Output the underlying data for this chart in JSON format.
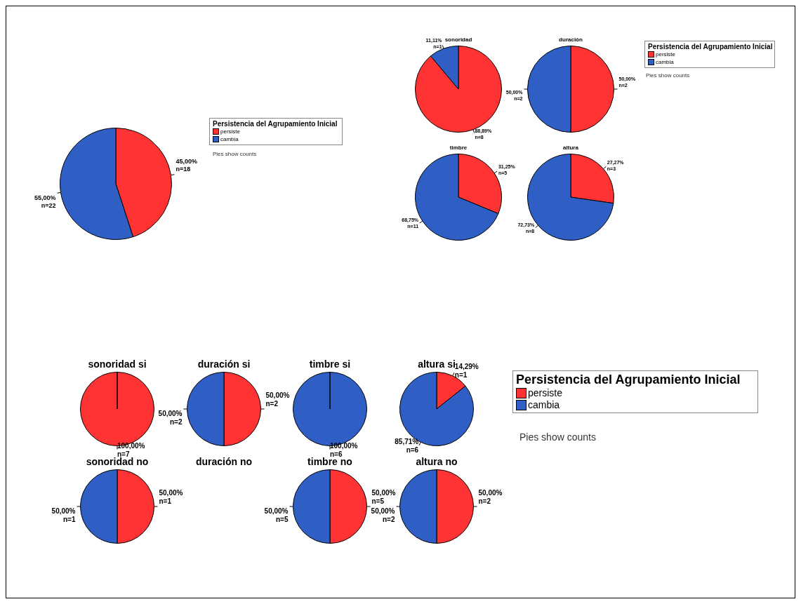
{
  "chart_data": [
    {
      "type": "pie",
      "categories": [
        "persiste",
        "cambia"
      ],
      "values": [
        18,
        22
      ],
      "colors": [
        "#ff3333",
        "#2f5fc4"
      ],
      "value_labels": [
        "45,00%\nn=18",
        "55,00%\nn=22"
      ],
      "legend": "right",
      "legend_title": "Persistencia del Agrupamiento Inicial",
      "annotations": [
        "Pies show counts"
      ]
    },
    {
      "type": "pie",
      "title": "sonoridad",
      "values": [
        8,
        1
      ],
      "colors": [
        "#ff3333",
        "#2f5fc4"
      ],
      "value_labels": [
        "88,89%\nn=8",
        "11,11%\nn=1"
      ]
    },
    {
      "type": "pie",
      "title": "duración",
      "categories": [
        "persiste",
        "cambia"
      ],
      "values": [
        2,
        2
      ],
      "colors": [
        "#ff3333",
        "#2f5fc4"
      ],
      "value_labels": [
        "50,00%\nn=2",
        "50,00%\nn=2"
      ],
      "legend": "right",
      "legend_title": "Persistencia del Agrupamiento Inicial",
      "annotations": [
        "Pies show counts"
      ]
    },
    {
      "type": "pie",
      "title": "timbre",
      "values": [
        5,
        11
      ],
      "colors": [
        "#ff3333",
        "#2f5fc4"
      ],
      "value_labels": [
        "31,25%\nn=5",
        "68,75%\nn=11"
      ]
    },
    {
      "type": "pie",
      "title": "altura",
      "values": [
        3,
        8
      ],
      "colors": [
        "#ff3333",
        "#2f5fc4"
      ],
      "value_labels": [
        "27,27%\nn=3",
        "72,73%\nn=8"
      ]
    },
    {
      "type": "pie",
      "title": "sonoridad si",
      "values": [
        7,
        0
      ],
      "colors": [
        "#ff3333",
        "#2f5fc4"
      ],
      "value_labels": [
        "100,00%\nn=7",
        null
      ]
    },
    {
      "type": "pie",
      "title": "duración si",
      "values": [
        2,
        2
      ],
      "colors": [
        "#ff3333",
        "#2f5fc4"
      ],
      "value_labels": [
        "50,00%\nn=2",
        "50,00%\nn=2"
      ]
    },
    {
      "type": "pie",
      "title": "timbre si",
      "values": [
        0,
        6
      ],
      "colors": [
        "#ff3333",
        "#2f5fc4"
      ],
      "value_labels": [
        null,
        "100,00%\nn=6"
      ]
    },
    {
      "type": "pie",
      "title": "altura si",
      "categories": [
        "persiste",
        "cambia"
      ],
      "values": [
        1,
        6
      ],
      "colors": [
        "#ff3333",
        "#2f5fc4"
      ],
      "value_labels": [
        "14,29%\nn=1",
        "85,71%\nn=6"
      ],
      "legend": "right",
      "legend_title": "Persistencia del Agrupamiento Inicial",
      "annotations": [
        "Pies show counts"
      ]
    },
    {
      "type": "pie",
      "title": "sonoridad no",
      "values": [
        1,
        1
      ],
      "colors": [
        "#ff3333",
        "#2f5fc4"
      ],
      "value_labels": [
        "50,00%\nn=1",
        "50,00%\nn=1"
      ]
    },
    {
      "type": "other",
      "title": "duración no"
    },
    {
      "type": "pie",
      "title": "timbre no",
      "values": [
        5,
        5
      ],
      "colors": [
        "#ff3333",
        "#2f5fc4"
      ],
      "value_labels": [
        "50,00%\nn=5",
        "50,00%\nn=5"
      ]
    },
    {
      "type": "pie",
      "title": "altura no",
      "values": [
        2,
        2
      ],
      "colors": [
        "#ff3333",
        "#2f5fc4"
      ],
      "value_labels": [
        "50,00%\nn=2",
        "50,00%\nn=2"
      ]
    }
  ]
}
